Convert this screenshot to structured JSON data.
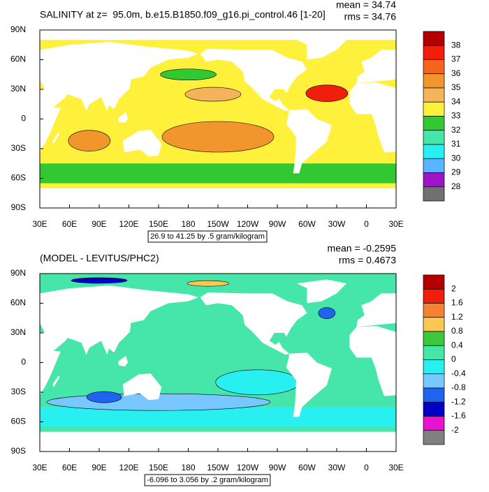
{
  "panels": [
    {
      "title": "SALINITY at z=  95.0m, b.e15.B1850.f09_g16.pi_control.46 [1-20]",
      "mean": "mean = 34.74",
      "rms": "rms = 34.76",
      "lat_labels": [
        "90N",
        "60N",
        "30N",
        "0",
        "30S",
        "60S",
        "90S"
      ],
      "lon_labels": [
        "30E",
        "60E",
        "90E",
        "120E",
        "150E",
        "180",
        "150W",
        "120W",
        "90W",
        "60W",
        "30W",
        "0",
        "30E"
      ],
      "range_note": "26.9 to 41.25 by .5 gram/kilogram",
      "colorbar_labels": [
        "38",
        "37",
        "36",
        "35",
        "34",
        "33",
        "32",
        "31",
        "30",
        "29",
        "28"
      ],
      "colorbar_colors": [
        "#b40000",
        "#f01e0a",
        "#f5641e",
        "#f0962d",
        "#f5b45a",
        "#fff03c",
        "#32c832",
        "#46e6aa",
        "#28f0f0",
        "#5ab4ff",
        "#a014c8",
        "#707070"
      ]
    },
    {
      "title": "(MODEL - LEVITUS/PHC2)",
      "mean": "mean = -0.2595",
      "rms": "rms = 0.4673",
      "lat_labels": [
        "90N",
        "60N",
        "30N",
        "0",
        "30S",
        "60S",
        "90S"
      ],
      "lon_labels": [
        "30E",
        "60E",
        "90E",
        "120E",
        "150E",
        "180",
        "150W",
        "120W",
        "90W",
        "60W",
        "30W",
        "0",
        "30E"
      ],
      "range_note": "-6.096 to 3.056 by .2 gram/kilogram",
      "colorbar_labels": [
        "2",
        "1.6",
        "1.2",
        "0.8",
        "0.4",
        "0",
        "-0.4",
        "-0.8",
        "-1.2",
        "-1.6",
        "-2"
      ],
      "colorbar_colors": [
        "#b40000",
        "#f01e0a",
        "#f58232",
        "#fac850",
        "#3cc83c",
        "#46e6aa",
        "#28f0f0",
        "#78c8ff",
        "#1e64f0",
        "#0000c8",
        "#e614d2",
        "#808080"
      ]
    }
  ]
}
